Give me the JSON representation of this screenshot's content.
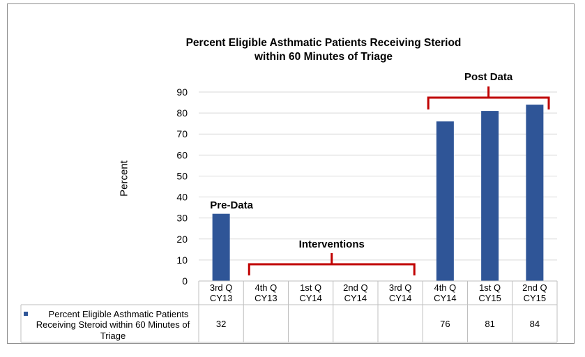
{
  "chart_data": {
    "type": "bar",
    "title_line1": "Percent Eligible Asthmatic Patients Receiving Steriod",
    "title_line2": "within 60 Minutes of Triage",
    "ylabel": "Percent",
    "xlabel": "",
    "ylim": [
      0,
      90
    ],
    "yticks": [
      0,
      10,
      20,
      30,
      40,
      50,
      60,
      70,
      80,
      90
    ],
    "grid": true,
    "bar_color": "#2f5597",
    "bracket_color": "#c00000",
    "categories": [
      [
        "3rd Q",
        "CY13"
      ],
      [
        "4th Q",
        "CY13"
      ],
      [
        "1st Q",
        "CY14"
      ],
      [
        "2nd Q",
        "CY14"
      ],
      [
        "3rd Q",
        "CY14"
      ],
      [
        "4th Q",
        "CY14"
      ],
      [
        "1st Q",
        "CY15"
      ],
      [
        "2nd Q",
        "CY15"
      ]
    ],
    "series": [
      {
        "name_lines": [
          "Percent Eligible Asthmatic Patients",
          "Receiving Steroid within 60 Minutes of",
          "Triage"
        ],
        "values": [
          32,
          null,
          null,
          null,
          null,
          76,
          81,
          84
        ],
        "value_labels": [
          "32",
          "",
          "",
          "",
          "",
          "76",
          "81",
          "84"
        ]
      }
    ],
    "annotations": [
      {
        "text": "Pre-Data",
        "bracket": false,
        "from": 0,
        "to": 0
      },
      {
        "text": "Interventions",
        "bracket": true,
        "from": 1,
        "to": 4
      },
      {
        "text": "Post Data",
        "bracket": true,
        "from": 5,
        "to": 7
      }
    ]
  }
}
